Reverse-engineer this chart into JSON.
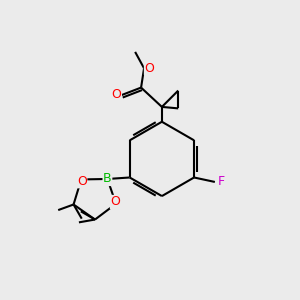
{
  "bg_color": "#ebebeb",
  "bond_color": "#000000",
  "bond_width": 1.5,
  "atom_colors": {
    "O": "#ff0000",
    "B": "#00bb00",
    "F": "#cc00cc",
    "C": "#000000"
  }
}
